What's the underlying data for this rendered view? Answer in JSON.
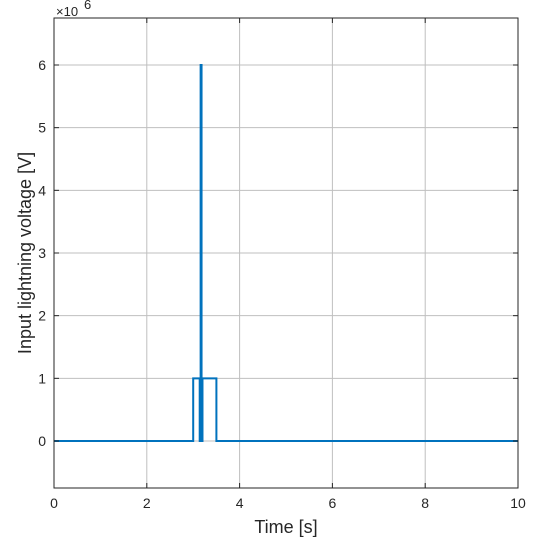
{
  "chart_data": {
    "type": "line",
    "title": "",
    "xlabel": "Time [s]",
    "ylabel": "Input lightning voltage [V]",
    "xlim": [
      0,
      10
    ],
    "ylim": [
      -0.75,
      6.75
    ],
    "y_exponent": {
      "base": "×10",
      "power": "6"
    },
    "grid": true,
    "x_ticks": [
      "0",
      "2",
      "4",
      "6",
      "8",
      "10"
    ],
    "x_tick_values": [
      0,
      2,
      4,
      6,
      8,
      10
    ],
    "y_ticks": [
      "0",
      "1",
      "2",
      "3",
      "4",
      "5",
      "6"
    ],
    "y_tick_values": [
      0,
      1,
      2,
      3,
      4,
      5,
      6
    ],
    "series": [
      {
        "color": "#0072bd",
        "x": [
          0,
          3.0,
          3.0,
          3.14,
          3.14,
          3.16,
          3.16,
          3.18,
          3.18,
          3.2,
          3.2,
          3.5,
          3.5,
          10
        ],
        "y": [
          0,
          0,
          1,
          1,
          0,
          0,
          6,
          6,
          0,
          0,
          1,
          1,
          0,
          0
        ]
      }
    ]
  }
}
